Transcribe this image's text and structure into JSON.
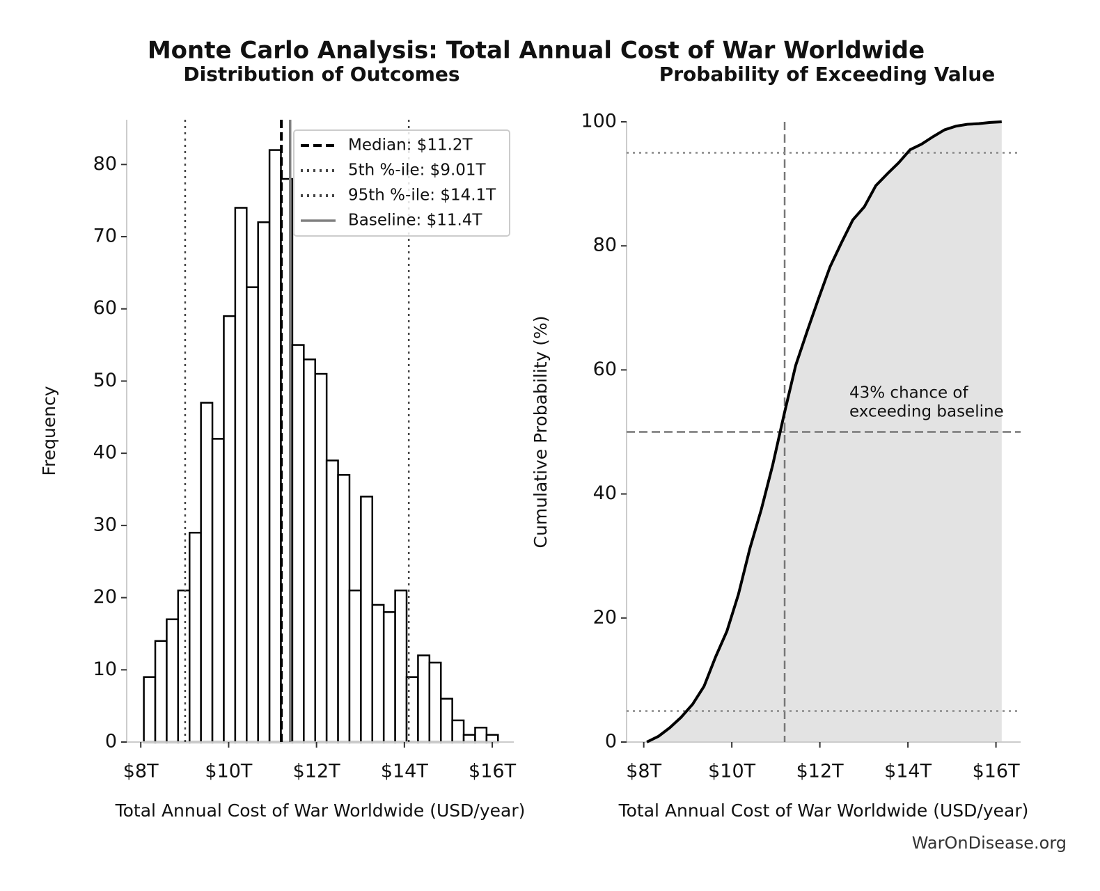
{
  "title": "Monte Carlo Analysis: Total Annual Cost of War Worldwide",
  "source": "WarOnDisease.org",
  "chart_data": [
    {
      "type": "histogram",
      "title": "Distribution of Outcomes",
      "xlabel": "Total Annual Cost of War Worldwide (USD/year)",
      "ylabel": "Frequency",
      "bins": [
        8.07,
        8.33,
        8.59,
        8.85,
        9.11,
        9.37,
        9.63,
        9.89,
        10.15,
        10.41,
        10.67,
        10.93,
        11.19,
        11.45,
        11.71,
        11.97,
        12.23,
        12.49,
        12.75,
        13.01,
        13.27,
        13.53,
        13.79,
        14.05,
        14.31,
        14.57,
        14.83,
        15.09,
        15.35,
        15.61,
        15.87,
        16.13
      ],
      "values": [
        9,
        14,
        17,
        21,
        29,
        47,
        42,
        59,
        74,
        63,
        72,
        82,
        78,
        55,
        53,
        51,
        39,
        37,
        21,
        34,
        19,
        18,
        21,
        9,
        12,
        11,
        6,
        3,
        1,
        2,
        1
      ],
      "color": "#ffffff",
      "edgecolor": "#000000",
      "xlim": [
        7.68,
        16.49
      ],
      "ylim": [
        0,
        86.2
      ],
      "xticks": [
        {
          "value": 8,
          "label": "$8T"
        },
        {
          "value": 10,
          "label": "$10T"
        },
        {
          "value": 12,
          "label": "$12T"
        },
        {
          "value": 14,
          "label": "$14T"
        },
        {
          "value": 16,
          "label": "$16T"
        }
      ],
      "yticks": [
        0,
        10,
        20,
        30,
        40,
        50,
        60,
        70,
        80
      ],
      "reference_lines": [
        {
          "axis": "x",
          "value": 11.2,
          "label": "Median: $11.2T",
          "color": "#000000",
          "style": "dashed"
        },
        {
          "axis": "x",
          "value": 9.01,
          "label": "5th %-ile: $9.01T",
          "color": "#444444",
          "style": "dotted"
        },
        {
          "axis": "x",
          "value": 14.1,
          "label": "95th %-ile: $14.1T",
          "color": "#444444",
          "style": "dotted"
        },
        {
          "axis": "x",
          "value": 11.4,
          "label": "Baseline: $11.4T",
          "color": "#808080",
          "style": "solid"
        }
      ],
      "legend": "upper right"
    },
    {
      "type": "line",
      "title": "Probability of Exceeding Value",
      "xlabel": "Total Annual Cost of War Worldwide (USD/year)",
      "ylabel": "Cumulative Probability (%)",
      "x": [
        8.07,
        8.33,
        8.59,
        8.85,
        9.11,
        9.37,
        9.63,
        9.89,
        10.15,
        10.41,
        10.67,
        10.93,
        11.19,
        11.45,
        11.71,
        11.97,
        12.23,
        12.49,
        12.75,
        13.01,
        13.27,
        13.53,
        13.79,
        14.05,
        14.31,
        14.57,
        14.83,
        15.09,
        15.35,
        15.61,
        15.87,
        16.13
      ],
      "series": [
        {
          "color": "#000000",
          "fill": "#e3e3e3",
          "values": [
            0,
            0.9,
            2.3,
            4.0,
            6.1,
            9.0,
            13.7,
            17.9,
            23.8,
            31.2,
            37.5,
            44.7,
            52.9,
            60.7,
            66.2,
            71.5,
            76.6,
            80.5,
            84.2,
            86.3,
            89.7,
            91.6,
            93.4,
            95.5,
            96.4,
            97.6,
            98.7,
            99.3,
            99.6,
            99.7,
            99.9,
            100
          ]
        }
      ],
      "xlim": [
        7.61,
        16.56
      ],
      "ylim": [
        0,
        100
      ],
      "xticks": [
        {
          "value": 8,
          "label": "$8T"
        },
        {
          "value": 10,
          "label": "$10T"
        },
        {
          "value": 12,
          "label": "$12T"
        },
        {
          "value": 14,
          "label": "$14T"
        },
        {
          "value": 16,
          "label": "$16T"
        }
      ],
      "yticks": [
        0,
        20,
        40,
        60,
        80,
        100
      ],
      "reference_lines": [
        {
          "axis": "x",
          "value": 11.2,
          "color": "#777777",
          "style": "dashed"
        },
        {
          "axis": "y",
          "value": 50,
          "color": "#777777",
          "style": "dashed"
        },
        {
          "axis": "y",
          "value": 5,
          "color": "#888888",
          "style": "dotted"
        },
        {
          "axis": "y",
          "value": 95,
          "color": "#888888",
          "style": "dotted"
        }
      ],
      "annotation": [
        "43% chance of",
        "exceeding baseline"
      ]
    }
  ]
}
